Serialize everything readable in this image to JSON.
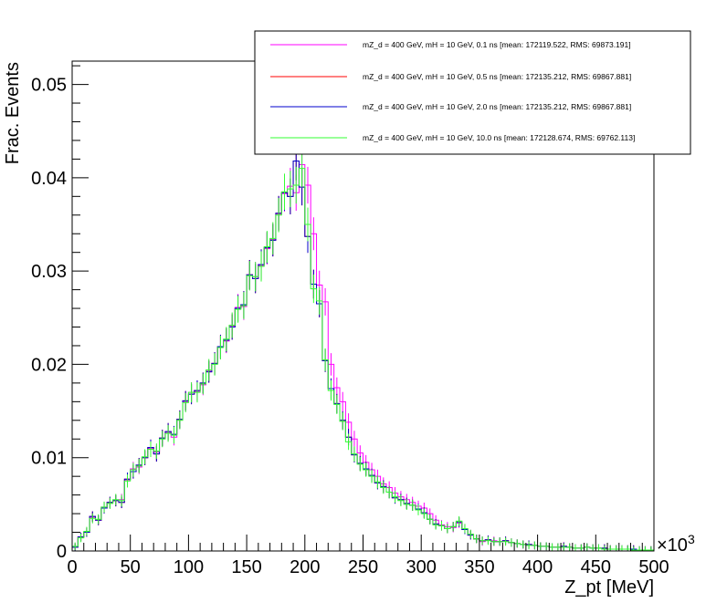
{
  "chart_data": {
    "type": "line",
    "title": "",
    "xlabel": "Z_pt [MeV]",
    "ylabel": "Frac. Events",
    "x_multiplier_label": "×10",
    "x_multiplier_exp": "3",
    "xlim": [
      0,
      500
    ],
    "ylim": [
      0,
      0.0525
    ],
    "x_ticks": [
      0,
      50,
      100,
      150,
      200,
      250,
      300,
      350,
      400,
      450,
      500
    ],
    "x_tick_labels": [
      "0",
      "50",
      "100",
      "150",
      "200",
      "250",
      "300",
      "350",
      "400",
      "450",
      "500"
    ],
    "y_ticks": [
      0,
      0.01,
      0.02,
      0.03,
      0.04,
      0.05
    ],
    "y_tick_labels": [
      "0",
      "0.01",
      "0.02",
      "0.03",
      "0.04",
      "0.05"
    ],
    "grid": false,
    "legend_position": "top-right",
    "bin_edges": [
      0,
      5,
      10,
      15,
      20,
      25,
      30,
      35,
      40,
      45,
      50,
      55,
      60,
      65,
      70,
      75,
      80,
      85,
      90,
      95,
      100,
      105,
      110,
      115,
      120,
      125,
      130,
      135,
      140,
      145,
      150,
      155,
      160,
      165,
      170,
      175,
      180,
      185,
      190,
      195,
      200,
      205,
      210,
      215,
      220,
      225,
      230,
      235,
      240,
      245,
      250,
      255,
      260,
      265,
      270,
      275,
      280,
      285,
      290,
      295,
      300,
      305,
      310,
      315,
      320,
      325,
      330,
      335,
      340,
      345,
      350,
      355,
      360,
      365,
      370,
      375,
      380,
      385,
      390,
      395,
      400,
      405,
      410,
      415,
      420,
      425,
      430,
      435,
      440,
      445,
      450,
      455,
      460,
      465,
      470,
      475,
      480,
      485,
      490,
      495,
      500
    ],
    "series": [
      {
        "name": "mZ_d = 400 GeV, mH = 10 GeV, 0.1 ns [mean: 172119.522, RMS: 69873.191]",
        "color": "#ff00ff",
        "values": [
          0.0004,
          0.0015,
          0.002,
          0.0036,
          0.0033,
          0.0047,
          0.0052,
          0.0054,
          0.0055,
          0.0076,
          0.0088,
          0.009,
          0.01,
          0.011,
          0.0106,
          0.0121,
          0.0127,
          0.0122,
          0.0141,
          0.016,
          0.017,
          0.0171,
          0.0178,
          0.0193,
          0.0201,
          0.0218,
          0.0225,
          0.0241,
          0.0261,
          0.0262,
          0.0296,
          0.0294,
          0.0306,
          0.0324,
          0.0334,
          0.0361,
          0.0383,
          0.0391,
          0.0384,
          0.0414,
          0.0392,
          0.034,
          0.0285,
          0.0267,
          0.02,
          0.0175,
          0.016,
          0.0138,
          0.012,
          0.0105,
          0.0095,
          0.0087,
          0.008,
          0.0072,
          0.0068,
          0.0062,
          0.0058,
          0.0055,
          0.0052,
          0.0048,
          0.0046,
          0.004,
          0.0033,
          0.0028,
          0.0026,
          0.0025,
          0.003,
          0.0024,
          0.0018,
          0.0013,
          0.001,
          0.0012,
          0.0011,
          0.001,
          0.0011,
          0.0009,
          0.0008,
          0.0007,
          0.0007,
          0.0006,
          0.0005,
          0.0005,
          0.0004,
          0.0004,
          0.0005,
          0.0004,
          0.0003,
          0.0003,
          0.0004,
          0.0003,
          0.0003,
          0.0003,
          0.0002,
          0.0002,
          0.0002,
          0.0002,
          0.0002,
          0.0001,
          0.0001,
          0.0001
        ]
      },
      {
        "name": "mZ_d = 400 GeV, mH = 10 GeV, 0.5 ns [mean: 172135.212, RMS: 69867.881]",
        "color": "#ff0000",
        "values": [
          0.0004,
          0.0015,
          0.002,
          0.0037,
          0.0033,
          0.0046,
          0.0052,
          0.0054,
          0.0052,
          0.0077,
          0.0085,
          0.0092,
          0.01,
          0.0111,
          0.0104,
          0.0121,
          0.0128,
          0.0125,
          0.0141,
          0.0161,
          0.0168,
          0.0172,
          0.018,
          0.0192,
          0.0201,
          0.0219,
          0.0226,
          0.024,
          0.026,
          0.0264,
          0.0296,
          0.0292,
          0.0307,
          0.0325,
          0.0333,
          0.0362,
          0.0384,
          0.038,
          0.0418,
          0.039,
          0.0337,
          0.0286,
          0.0265,
          0.0204,
          0.0174,
          0.0158,
          0.014,
          0.0122,
          0.0103,
          0.0094,
          0.0088,
          0.0081,
          0.0073,
          0.0069,
          0.0063,
          0.0057,
          0.0055,
          0.0051,
          0.0049,
          0.0045,
          0.0041,
          0.0034,
          0.0029,
          0.0027,
          0.0024,
          0.0026,
          0.0031,
          0.0023,
          0.0017,
          0.0013,
          0.0011,
          0.0012,
          0.001,
          0.001,
          0.0011,
          0.0009,
          0.0008,
          0.0007,
          0.0007,
          0.0006,
          0.0005,
          0.0005,
          0.0004,
          0.0004,
          0.0005,
          0.0004,
          0.0003,
          0.0003,
          0.0004,
          0.0003,
          0.0003,
          0.0003,
          0.0002,
          0.0002,
          0.0002,
          0.0002,
          0.0002,
          0.0001,
          0.0001,
          0.0001
        ]
      },
      {
        "name": "mZ_d = 400 GeV, mH = 10 GeV, 2.0 ns [mean: 172135.212, RMS: 69867.881]",
        "color": "#0000cc",
        "values": [
          0.0004,
          0.0015,
          0.002,
          0.0037,
          0.0033,
          0.0046,
          0.0052,
          0.0054,
          0.0052,
          0.0077,
          0.0085,
          0.0092,
          0.01,
          0.0111,
          0.0104,
          0.0121,
          0.0128,
          0.0125,
          0.0141,
          0.0161,
          0.0168,
          0.0172,
          0.018,
          0.0192,
          0.0201,
          0.0219,
          0.0226,
          0.024,
          0.026,
          0.0264,
          0.0296,
          0.0292,
          0.0307,
          0.0325,
          0.0333,
          0.0362,
          0.0384,
          0.038,
          0.0418,
          0.039,
          0.0337,
          0.0286,
          0.0265,
          0.0204,
          0.0174,
          0.0158,
          0.014,
          0.0122,
          0.0103,
          0.0094,
          0.0088,
          0.0081,
          0.0073,
          0.0069,
          0.0063,
          0.0057,
          0.0055,
          0.0051,
          0.0049,
          0.0045,
          0.0041,
          0.0034,
          0.0029,
          0.0027,
          0.0024,
          0.0026,
          0.0031,
          0.0023,
          0.0017,
          0.0013,
          0.0011,
          0.0012,
          0.001,
          0.001,
          0.0011,
          0.0009,
          0.0008,
          0.0007,
          0.0007,
          0.0006,
          0.0005,
          0.0005,
          0.0004,
          0.0004,
          0.0005,
          0.0004,
          0.0003,
          0.0003,
          0.0004,
          0.0003,
          0.0003,
          0.0003,
          0.0002,
          0.0002,
          0.0002,
          0.0002,
          0.0002,
          0.0001,
          0.0001,
          0.0001
        ]
      },
      {
        "name": "mZ_d = 400 GeV, mH = 10 GeV, 10.0 ns [mean: 172128.674, RMS: 69762.113]",
        "color": "#33ff33",
        "values": [
          0.0005,
          0.0014,
          0.0021,
          0.0035,
          0.0034,
          0.0047,
          0.0051,
          0.0055,
          0.0054,
          0.0075,
          0.0087,
          0.0091,
          0.0101,
          0.0109,
          0.0107,
          0.012,
          0.0126,
          0.0124,
          0.014,
          0.0159,
          0.017,
          0.017,
          0.0179,
          0.0194,
          0.02,
          0.0218,
          0.0227,
          0.0242,
          0.0259,
          0.0263,
          0.0295,
          0.0294,
          0.0305,
          0.0326,
          0.0335,
          0.036,
          0.0385,
          0.0388,
          0.0392,
          0.041,
          0.035,
          0.0281,
          0.0268,
          0.0205,
          0.0172,
          0.0157,
          0.0139,
          0.0117,
          0.0104,
          0.0093,
          0.0087,
          0.008,
          0.0074,
          0.0068,
          0.0063,
          0.0058,
          0.0054,
          0.005,
          0.0049,
          0.0044,
          0.004,
          0.0034,
          0.0028,
          0.0027,
          0.0024,
          0.0026,
          0.0032,
          0.0024,
          0.0018,
          0.0013,
          0.0011,
          0.0011,
          0.001,
          0.001,
          0.001,
          0.0009,
          0.0008,
          0.0007,
          0.0006,
          0.0006,
          0.0005,
          0.0005,
          0.0004,
          0.0004,
          0.0004,
          0.0004,
          0.0003,
          0.0003,
          0.0004,
          0.0003,
          0.0003,
          0.0002,
          0.0002,
          0.0002,
          0.0002,
          0.0002,
          0.0001,
          0.0001,
          0.0001,
          0.0001
        ]
      }
    ]
  }
}
